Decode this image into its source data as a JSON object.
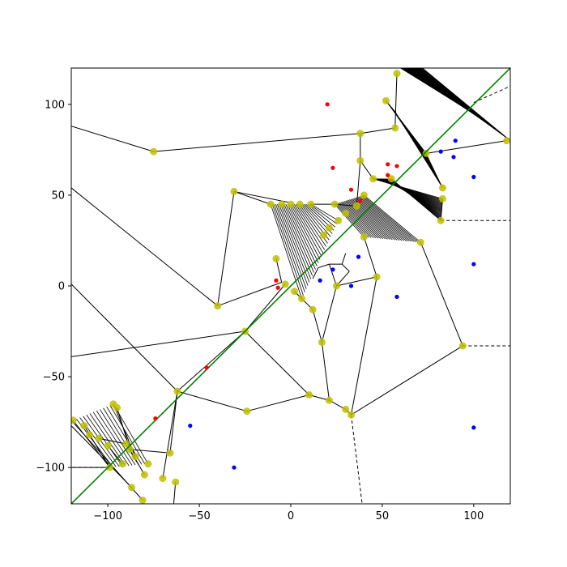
{
  "chart_data": {
    "type": "scatter",
    "title": "",
    "xlabel": "",
    "ylabel": "",
    "xlim": [
      -120,
      120
    ],
    "ylim": [
      -120,
      120
    ],
    "grid": false,
    "legend": "none",
    "x_ticks": [
      {
        "value": -100,
        "label": "−100"
      },
      {
        "value": -50,
        "label": "−50"
      },
      {
        "value": 0,
        "label": "0"
      },
      {
        "value": 50,
        "label": "50"
      },
      {
        "value": 100,
        "label": "100"
      }
    ],
    "y_ticks": [
      {
        "value": 100,
        "label": "100"
      },
      {
        "value": 50,
        "label": "50"
      },
      {
        "value": 0,
        "label": "0"
      },
      {
        "value": -50,
        "label": "−50"
      },
      {
        "value": -100,
        "label": "−100"
      }
    ],
    "colors": {
      "red_points": "#ff0000",
      "blue_points": "#0000ff",
      "vertices": "#bfbf00",
      "edges": "#000000",
      "diagonal": "#008000"
    },
    "diagonal_line": {
      "from": [
        -120,
        -120
      ],
      "to": [
        120,
        120
      ]
    },
    "series": [
      {
        "color": "red",
        "points": [
          [
            20,
            100
          ],
          [
            23,
            65
          ],
          [
            33,
            53
          ],
          [
            38,
            47
          ],
          [
            53,
            67
          ],
          [
            53,
            61
          ],
          [
            58,
            66
          ],
          [
            -8,
            3
          ],
          [
            -7,
            -1
          ],
          [
            -46,
            -45
          ],
          [
            -74,
            -73
          ]
        ]
      },
      {
        "color": "blue",
        "points": [
          [
            82,
            74
          ],
          [
            90,
            80
          ],
          [
            89,
            71
          ],
          [
            100,
            60
          ],
          [
            100,
            12
          ],
          [
            100,
            -78
          ],
          [
            58,
            -6
          ],
          [
            37,
            16
          ],
          [
            33,
            0
          ],
          [
            23,
            9
          ],
          [
            16,
            3
          ],
          [
            -31,
            -100
          ],
          [
            -55,
            -77
          ]
        ]
      }
    ],
    "vertex_points": [
      [
        -75,
        74
      ],
      [
        -31,
        52
      ],
      [
        38,
        84
      ],
      [
        -40,
        -11
      ],
      [
        -25,
        -25
      ],
      [
        -62,
        -58
      ],
      [
        -24,
        -69
      ],
      [
        10,
        -60
      ],
      [
        21,
        -63
      ],
      [
        30,
        -68
      ],
      [
        33,
        -71
      ],
      [
        17,
        -31
      ],
      [
        12,
        -13
      ],
      [
        25,
        0
      ],
      [
        47,
        5
      ],
      [
        94,
        -33
      ],
      [
        82,
        36
      ],
      [
        74,
        73
      ],
      [
        118,
        80
      ],
      [
        83,
        48
      ],
      [
        83,
        54
      ],
      [
        71,
        24
      ],
      [
        40,
        27
      ],
      [
        38,
        69
      ],
      [
        45,
        59
      ],
      [
        55,
        59
      ],
      [
        57,
        87
      ],
      [
        58,
        117
      ],
      [
        52,
        102
      ],
      [
        -11,
        45
      ],
      [
        -5,
        45
      ],
      [
        0,
        45
      ],
      [
        5,
        45
      ],
      [
        -8,
        15
      ],
      [
        11,
        45
      ],
      [
        24,
        45
      ],
      [
        40,
        50
      ],
      [
        36,
        44
      ],
      [
        30,
        40
      ],
      [
        26,
        36
      ],
      [
        21,
        32
      ],
      [
        18,
        28
      ],
      [
        -3,
        1
      ],
      [
        2,
        -3
      ],
      [
        6,
        -7
      ],
      [
        -63,
        -108
      ],
      [
        -66,
        -92
      ],
      [
        -70,
        -106
      ],
      [
        -97,
        -65
      ],
      [
        -95,
        -67
      ],
      [
        -90,
        -87
      ],
      [
        -88,
        -90
      ],
      [
        -99,
        -100
      ],
      [
        -87,
        -111
      ],
      [
        -80,
        -104
      ],
      [
        -78,
        -98
      ],
      [
        -85,
        -94
      ],
      [
        -119,
        -74
      ],
      [
        -113,
        -77
      ],
      [
        -110,
        -82
      ],
      [
        -105,
        -84
      ],
      [
        -100,
        -88
      ],
      [
        -92,
        -98
      ],
      [
        -81,
        -118
      ]
    ],
    "dashed_rays": [
      [
        [
          82,
          36
        ],
        [
          120,
          36
        ]
      ],
      [
        [
          94,
          -33
        ],
        [
          120,
          -33
        ]
      ],
      [
        [
          33,
          -71
        ],
        [
          39,
          -120
        ]
      ],
      [
        [
          -99,
          -100
        ],
        [
          -120,
          -100
        ]
      ],
      [
        [
          100,
          101
        ],
        [
          120,
          110
        ]
      ]
    ],
    "edges": [
      [
        [
          -120,
          88
        ],
        [
          -75,
          74
        ]
      ],
      [
        [
          -75,
          74
        ],
        [
          38,
          84
        ]
      ],
      [
        [
          -120,
          54
        ],
        [
          -40,
          -11
        ]
      ],
      [
        [
          -40,
          -11
        ],
        [
          -5,
          2
        ]
      ],
      [
        [
          -40,
          -11
        ],
        [
          -31,
          52
        ]
      ],
      [
        [
          -31,
          52
        ],
        [
          -11,
          45
        ]
      ],
      [
        [
          -31,
          52
        ],
        [
          -1,
          46
        ]
      ],
      [
        [
          -120,
          1
        ],
        [
          -62,
          -58
        ]
      ],
      [
        [
          -62,
          -58
        ],
        [
          -25,
          -25
        ]
      ],
      [
        [
          -62,
          -58
        ],
        [
          -66,
          -92
        ]
      ],
      [
        [
          -62,
          -58
        ],
        [
          -70,
          -106
        ]
      ],
      [
        [
          -64,
          -120
        ],
        [
          -63,
          -108
        ]
      ],
      [
        [
          -120,
          -39
        ],
        [
          -25,
          -25
        ]
      ],
      [
        [
          -25,
          -25
        ],
        [
          10,
          -60
        ]
      ],
      [
        [
          -25,
          -25
        ],
        [
          -3,
          1
        ]
      ],
      [
        [
          -62,
          -58
        ],
        [
          -24,
          -69
        ]
      ],
      [
        [
          -24,
          -69
        ],
        [
          10,
          -60
        ]
      ],
      [
        [
          10,
          -60
        ],
        [
          21,
          -63
        ]
      ],
      [
        [
          21,
          -63
        ],
        [
          17,
          -31
        ]
      ],
      [
        [
          21,
          -63
        ],
        [
          30,
          -68
        ]
      ],
      [
        [
          30,
          -68
        ],
        [
          33,
          -71
        ]
      ],
      [
        [
          33,
          -71
        ],
        [
          47,
          5
        ]
      ],
      [
        [
          33,
          -71
        ],
        [
          94,
          -33
        ]
      ],
      [
        [
          94,
          -33
        ],
        [
          71,
          24
        ]
      ],
      [
        [
          17,
          -31
        ],
        [
          12,
          -13
        ]
      ],
      [
        [
          17,
          -31
        ],
        [
          25,
          0
        ]
      ],
      [
        [
          12,
          -13
        ],
        [
          2,
          -3
        ]
      ],
      [
        [
          25,
          0
        ],
        [
          47,
          5
        ]
      ],
      [
        [
          47,
          5
        ],
        [
          40,
          27
        ]
      ],
      [
        [
          38,
          84
        ],
        [
          38,
          69
        ]
      ],
      [
        [
          38,
          69
        ],
        [
          45,
          59
        ]
      ],
      [
        [
          38,
          84
        ],
        [
          57,
          87
        ]
      ],
      [
        [
          57,
          87
        ],
        [
          58,
          117
        ]
      ],
      [
        [
          82,
          36
        ],
        [
          83,
          48
        ]
      ],
      [
        [
          74,
          73
        ],
        [
          118,
          80
        ]
      ],
      [
        [
          11,
          45
        ],
        [
          24,
          45
        ]
      ],
      [
        [
          24,
          45
        ],
        [
          36,
          44
        ]
      ],
      [
        [
          36,
          44
        ],
        [
          38,
          69
        ]
      ],
      [
        [
          -8,
          15
        ],
        [
          -5,
          2
        ]
      ],
      [
        [
          25,
          0
        ],
        [
          21,
          12
        ]
      ],
      [
        [
          21,
          12
        ],
        [
          15,
          10
        ]
      ],
      [
        [
          15,
          10
        ],
        [
          12,
          4
        ]
      ],
      [
        [
          21,
          12
        ],
        [
          28,
          12
        ]
      ],
      [
        [
          28,
          12
        ],
        [
          30,
          18
        ]
      ],
      [
        [
          28,
          12
        ],
        [
          32,
          8
        ]
      ],
      [
        [
          32,
          8
        ],
        [
          25,
          0
        ]
      ],
      [
        [
          -97,
          -65
        ],
        [
          -85,
          -94
        ]
      ],
      [
        [
          -95,
          -67
        ],
        [
          -88,
          -90
        ]
      ],
      [
        [
          -88,
          -90
        ],
        [
          -66,
          -92
        ]
      ],
      [
        [
          -88,
          -90
        ],
        [
          -80,
          -104
        ]
      ],
      [
        [
          -120,
          -74
        ],
        [
          -81,
          -118
        ]
      ],
      [
        [
          -120,
          -77
        ],
        [
          -87,
          -111
        ]
      ],
      [
        [
          -113,
          -77
        ],
        [
          -99,
          -100
        ]
      ],
      [
        [
          -105,
          -84
        ],
        [
          -90,
          -87
        ]
      ],
      [
        [
          -100,
          -88
        ],
        [
          -92,
          -98
        ]
      ],
      [
        [
          -99,
          -100
        ],
        [
          -120,
          -100
        ]
      ]
    ],
    "hatch_bands": [
      {
        "a": [
          [
            60,
            120
          ],
          [
            72,
            120
          ]
        ],
        "b": [
          [
            100,
            95
          ],
          [
            120,
            80
          ]
        ],
        "n": 28
      },
      {
        "a": [
          [
            52,
            102
          ],
          [
            57,
            96
          ]
        ],
        "b": [
          [
            74,
            73
          ],
          [
            83,
            54
          ]
        ],
        "n": 26
      },
      {
        "a": [
          [
            45,
            59
          ],
          [
            55,
            59
          ]
        ],
        "b": [
          [
            83,
            48
          ],
          [
            82,
            36
          ]
        ],
        "n": 24
      },
      {
        "a": [
          [
            24,
            45
          ],
          [
            40,
            50
          ]
        ],
        "b": [
          [
            40,
            27
          ],
          [
            71,
            24
          ]
        ],
        "n": 24
      },
      {
        "a": [
          [
            -11,
            45
          ],
          [
            11,
            45
          ]
        ],
        "b": [
          [
            6,
            -7
          ],
          [
            26,
            36
          ]
        ],
        "n": 24
      },
      {
        "a": [
          [
            -97,
            -65
          ],
          [
            -119,
            -74
          ]
        ],
        "b": [
          [
            -78,
            -98
          ],
          [
            -99,
            -100
          ]
        ],
        "n": 12
      }
    ]
  }
}
